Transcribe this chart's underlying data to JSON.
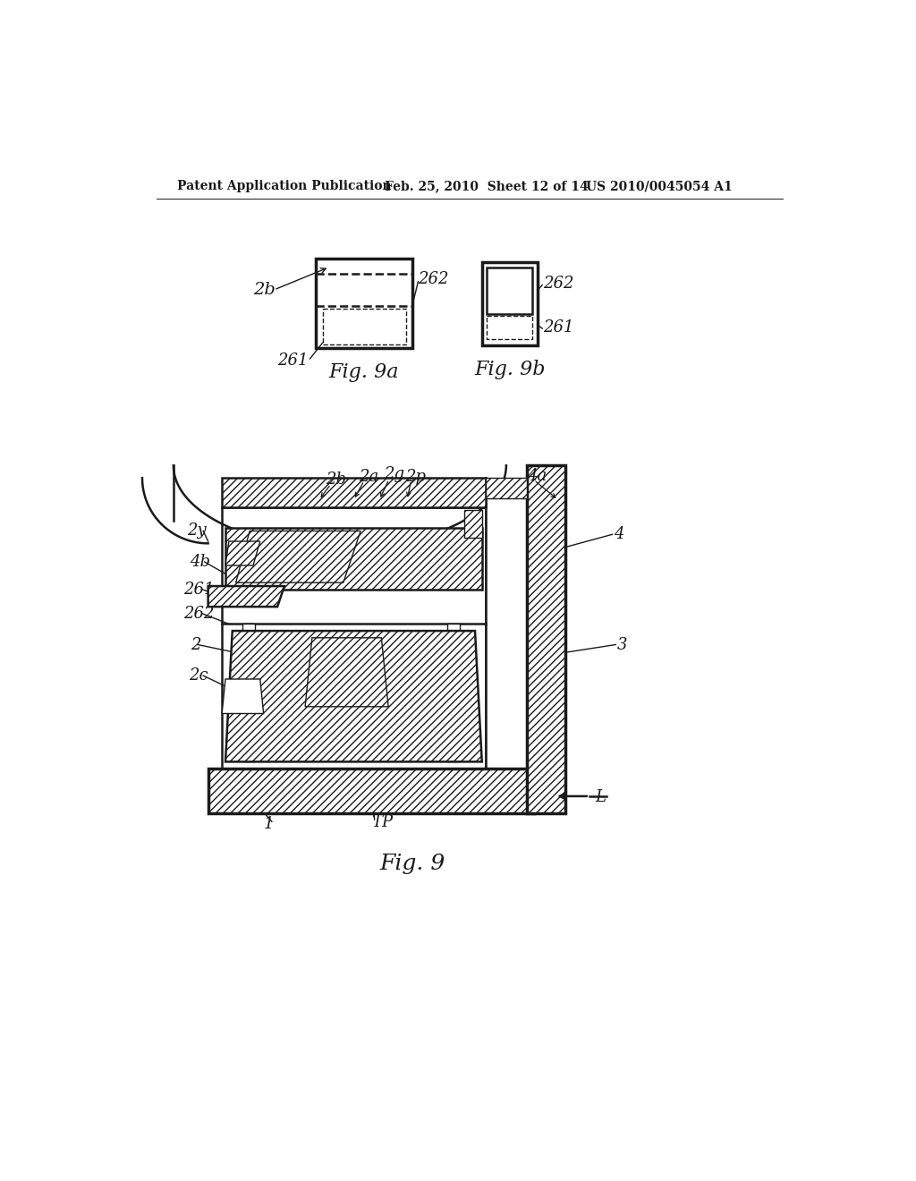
{
  "bg_color": "#ffffff",
  "header_left": "Patent Application Publication",
  "header_mid": "Feb. 25, 2010  Sheet 12 of 14",
  "header_right": "US 2010/0045054 A1",
  "fig9a_label": "Fig. 9a",
  "fig9b_label": "Fig. 9b",
  "fig9_label": "Fig. 9",
  "labels": {
    "2b_top": "2b",
    "2a": "2a",
    "2g": "2g",
    "2p": "2p",
    "4a": "4a",
    "2y": "2y",
    "4b": "4b",
    "261_left": "261",
    "262_left": "262",
    "2": "2",
    "2c": "2c",
    "4_right": "4",
    "3": "3",
    "1": "1",
    "TP": "TP",
    "L": "L",
    "262_9a": "262",
    "261_9a": "261",
    "262_9b": "262",
    "261_9b": "261",
    "2b_9a": "2b"
  }
}
